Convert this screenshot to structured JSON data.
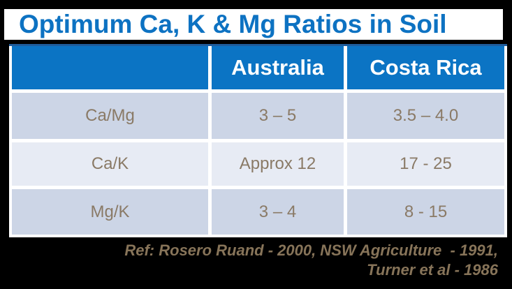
{
  "title": "Optimum Ca, K & Mg Ratios in Soil",
  "table": {
    "columns": [
      "",
      "Australia",
      "Costa Rica"
    ],
    "rows": [
      {
        "label": "Ca/Mg",
        "australia": "3 – 5",
        "costa_rica": "3.5 – 4.0"
      },
      {
        "label": "Ca/K",
        "australia": "Approx 12",
        "costa_rica": "17 - 25"
      },
      {
        "label": "Mg/K",
        "australia": "3 – 4",
        "costa_rica": "8 - 15"
      }
    ]
  },
  "reference": {
    "line1": "Ref: Rosero Ruand - 2000, NSW Agriculture  - 1991,",
    "line2": "Turner et al - 1986"
  },
  "colors": {
    "background_black": "#000000",
    "title_background": "#ffffff",
    "title_blue": "#0d72c2",
    "header_blue": "#0b74c4",
    "header_top_border_blue": "#1f5c9c",
    "row_light_blue": "#ccd5e6",
    "row_pale_blue": "#e7ebf4",
    "cell_text_brown": "#8a7a66",
    "reference_tan": "#877459"
  }
}
